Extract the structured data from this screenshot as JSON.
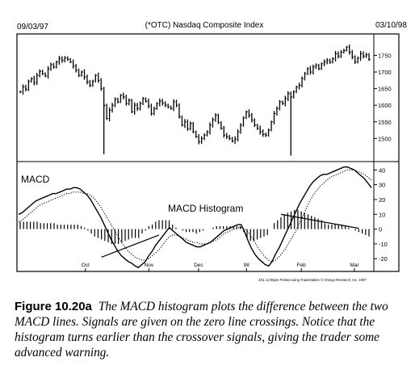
{
  "header": {
    "date_start": "09/03/97",
    "title": "(*OTC) Nasdaq Composite Index",
    "date_end": "03/10/98"
  },
  "caption": {
    "label": "Figure 10.20a",
    "text": "The MACD histogram plots the difference between the two MACD lines. Signals are given on the zero line crossings. Notice that the histogram turns earlier than the crossover signals, giving the trader some advanced warning."
  },
  "colors": {
    "ink": "#000000",
    "paper": "#ffffff"
  },
  "chart_data": [
    {
      "type": "bar",
      "subtype": "ohlc",
      "title": "(*OTC) Nasdaq Composite Index",
      "ylim": [
        1440,
        1800
      ],
      "yticks": [
        1500,
        1550,
        1600,
        1650,
        1700,
        1750
      ],
      "ytick_labels": [
        "1500",
        "1550",
        "1600",
        "1650",
        "1700",
        "1750"
      ],
      "grid": false,
      "closes": [
        1640,
        1655,
        1648,
        1672,
        1680,
        1668,
        1690,
        1702,
        1695,
        1688,
        1710,
        1722,
        1715,
        1730,
        1740,
        1735,
        1742,
        1738,
        1730,
        1718,
        1705,
        1690,
        1700,
        1685,
        1670,
        1660,
        1672,
        1690,
        1675,
        1650,
        1600,
        1560,
        1585,
        1600,
        1618,
        1610,
        1630,
        1625,
        1605,
        1615,
        1580,
        1600,
        1590,
        1605,
        1620,
        1612,
        1598,
        1575,
        1590,
        1605,
        1612,
        1606,
        1600,
        1595,
        1590,
        1610,
        1600,
        1565,
        1540,
        1550,
        1530,
        1545,
        1520,
        1505,
        1490,
        1500,
        1510,
        1520,
        1540,
        1556,
        1570,
        1548,
        1530,
        1510,
        1505,
        1500,
        1492,
        1498,
        1520,
        1540,
        1562,
        1580,
        1570,
        1555,
        1540,
        1530,
        1520,
        1512,
        1510,
        1525,
        1550,
        1575,
        1590,
        1610,
        1605,
        1620,
        1635,
        1625,
        1640,
        1655,
        1660,
        1680,
        1695,
        1710,
        1700,
        1715,
        1720,
        1710,
        1725,
        1730,
        1735,
        1730,
        1740,
        1755,
        1748,
        1760,
        1765,
        1775,
        1760,
        1745,
        1730,
        1742,
        1755,
        1748,
        1752,
        1738
      ]
    },
    {
      "type": "line",
      "title": "MACD",
      "annotation": "MACD Histogram",
      "ylim": [
        -27,
        44
      ],
      "yticks": [
        40,
        30,
        20,
        10,
        0,
        -10,
        -20
      ],
      "ytick_labels": [
        "40",
        "30",
        "20",
        "10",
        "0",
        "-10",
        "-20"
      ],
      "x_tick_labels": [
        "Oct",
        "Nov",
        "Dec",
        "98",
        "Feb",
        "Mar"
      ],
      "footnote": "3/11 12:05pm Printed using TradeStation © Omega Research, Inc. 1997",
      "series": [
        {
          "style": "solid",
          "values": [
            10,
            11,
            13,
            15,
            17,
            19,
            20,
            21,
            22,
            23,
            24,
            24,
            25,
            26,
            27,
            27,
            28,
            28,
            27,
            25,
            23,
            20,
            16,
            12,
            8,
            3,
            -2,
            -7,
            -11,
            -15,
            -18,
            -20,
            -22,
            -23,
            -25,
            -26,
            -24,
            -22,
            -18,
            -15,
            -11,
            -8,
            -5,
            -2,
            1,
            -1,
            -3,
            -5,
            -7,
            -9,
            -10,
            -11,
            -12,
            -12,
            -11,
            -10,
            -9,
            -7,
            -5,
            -3,
            -1,
            0,
            1,
            2,
            3,
            3,
            -2,
            -8,
            -13,
            -17,
            -20,
            -22,
            -24,
            -25,
            -22,
            -17,
            -13,
            -8,
            -3,
            2,
            7,
            12,
            17,
            21,
            25,
            29,
            32,
            34,
            36,
            37,
            37,
            38,
            39,
            40,
            41,
            42,
            42,
            41,
            40,
            38,
            36,
            34,
            31,
            28
          ]
        },
        {
          "style": "dotted",
          "values": [
            5,
            6,
            8,
            10,
            12,
            14,
            16,
            17,
            18,
            19,
            20,
            21,
            22,
            23,
            24,
            24,
            25,
            25,
            25,
            24,
            24,
            23,
            21,
            18,
            15,
            11,
            7,
            3,
            -1,
            -5,
            -9,
            -12,
            -15,
            -17,
            -19,
            -20,
            -21,
            -21,
            -20,
            -18,
            -16,
            -14,
            -11,
            -8,
            -5,
            -4,
            -4,
            -5,
            -6,
            -7,
            -8,
            -9,
            -9,
            -10,
            -10,
            -10,
            -9,
            -8,
            -7,
            -5,
            -3,
            -2,
            -1,
            0,
            1,
            1,
            0,
            -2,
            -5,
            -9,
            -13,
            -16,
            -19,
            -21,
            -22,
            -21,
            -19,
            -16,
            -13,
            -9,
            -5,
            -1,
            4,
            9,
            14,
            19,
            23,
            26,
            29,
            31,
            33,
            35,
            36,
            37,
            38,
            39,
            40,
            40,
            40,
            39,
            38,
            37,
            35,
            33
          ]
        }
      ]
    },
    {
      "type": "bar",
      "title": "MACD Histogram",
      "values": [
        5,
        5,
        5,
        5,
        5,
        5,
        4,
        4,
        4,
        4,
        4,
        3,
        3,
        3,
        3,
        3,
        3,
        3,
        2,
        1,
        -1,
        -3,
        -5,
        -6,
        -7,
        -8,
        -9,
        -10,
        -10,
        -10,
        -9,
        -8,
        -7,
        -6,
        -6,
        -6,
        -3,
        -1,
        2,
        3,
        5,
        6,
        6,
        6,
        6,
        3,
        1,
        0,
        -1,
        -2,
        -2,
        -2,
        -3,
        -2,
        -1,
        0,
        0,
        1,
        2,
        2,
        2,
        2,
        2,
        2,
        2,
        2,
        -2,
        -6,
        -8,
        -8,
        -7,
        -6,
        -5,
        -4,
        0,
        4,
        6,
        8,
        10,
        11,
        12,
        13,
        13,
        12,
        11,
        10,
        9,
        8,
        7,
        6,
        4,
        3,
        3,
        3,
        3,
        3,
        2,
        1,
        0,
        -1,
        -2,
        -3,
        -4,
        -5
      ]
    }
  ]
}
